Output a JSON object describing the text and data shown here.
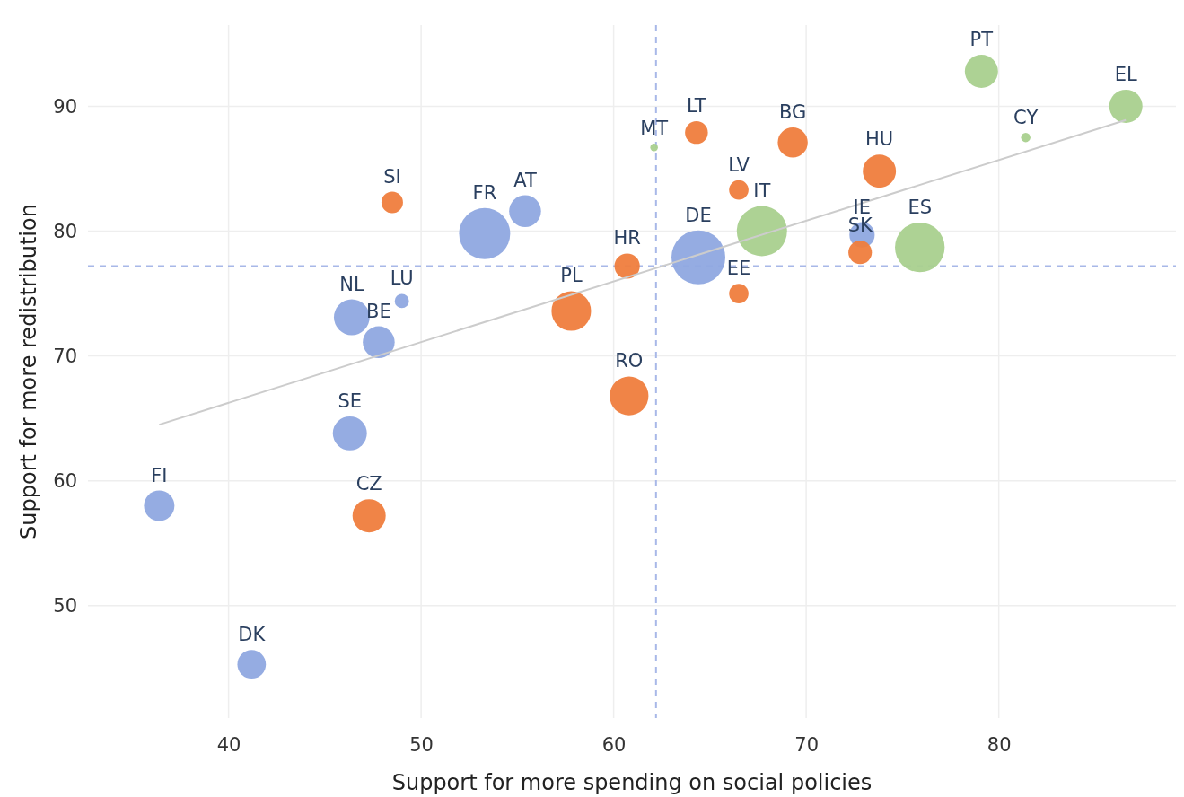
{
  "chart_data": {
    "type": "bubble",
    "xlabel": "Support for more spending on social policies",
    "ylabel": "Support for more redistribution",
    "xlim": [
      32.7,
      89.2
    ],
    "ylim": [
      41,
      96.5
    ],
    "xticks": [
      40,
      50,
      60,
      70,
      80
    ],
    "yticks": [
      50,
      60,
      70,
      80,
      90
    ],
    "grid": true,
    "marker": "circle",
    "series": [
      {
        "color": "#8fa8e0",
        "x": [
          53.3,
          55.4,
          46.4,
          47.8,
          49.0,
          64.4,
          72.9,
          46.3,
          36.4,
          41.2
        ],
        "values": [
          79.8,
          81.6,
          73.1,
          71.1,
          74.4,
          77.9,
          79.7,
          63.8,
          58.0,
          45.3
        ],
        "sizes": [
          0.9,
          0.35,
          0.44,
          0.35,
          0.07,
          1,
          0.22,
          0.4,
          0.32,
          0.28
        ]
      },
      {
        "color": "#ef7d3d",
        "x": [
          48.5,
          57.8,
          60.7,
          64.3,
          69.3,
          66.5,
          66.5,
          73.8,
          72.8,
          60.8,
          47.3
        ],
        "values": [
          82.3,
          73.6,
          77.2,
          87.9,
          87.1,
          83.3,
          75.0,
          84.8,
          78.3,
          66.8,
          57.2
        ],
        "sizes": [
          0.16,
          0.54,
          0.22,
          0.18,
          0.31,
          0.13,
          0.13,
          0.38,
          0.19,
          0.52,
          0.38
        ]
      },
      {
        "color": "#a9d08e",
        "x": [
          62.1,
          67.7,
          75.9,
          79.1,
          81.4,
          86.6
        ],
        "values": [
          86.7,
          80.0,
          78.7,
          92.8,
          87.5,
          90.0
        ],
        "sizes": [
          0.02,
          0.87,
          0.85,
          0.38,
          0.03,
          0.38
        ]
      },
      {
        "type": "line",
        "marker": "none",
        "color": "#cccccc",
        "x": [
          36.4,
          86.6
        ],
        "values": [
          64.5,
          88.9
        ]
      }
    ],
    "ref_lines": [
      {
        "axis": "x",
        "value": 62.2,
        "color": "#a8b8e8",
        "line_style": "dashed"
      },
      {
        "axis": "y",
        "value": 77.2,
        "color": "#a8b8e8",
        "line_style": "dashed"
      }
    ],
    "annotations": [
      {
        "text": "FR",
        "x": 53.3,
        "y": 79.8
      },
      {
        "text": "AT",
        "x": 55.4,
        "y": 81.6
      },
      {
        "text": "NL",
        "x": 46.4,
        "y": 73.1
      },
      {
        "text": "BE",
        "x": 47.8,
        "y": 71.1
      },
      {
        "text": "LU",
        "x": 49.0,
        "y": 74.4
      },
      {
        "text": "DE",
        "x": 64.4,
        "y": 77.9
      },
      {
        "text": "IE",
        "x": 72.9,
        "y": 79.7
      },
      {
        "text": "SE",
        "x": 46.3,
        "y": 63.8
      },
      {
        "text": "FI",
        "x": 36.4,
        "y": 58.0
      },
      {
        "text": "DK",
        "x": 41.2,
        "y": 45.3
      },
      {
        "text": "SI",
        "x": 48.5,
        "y": 82.3
      },
      {
        "text": "PL",
        "x": 57.8,
        "y": 73.6
      },
      {
        "text": "HR",
        "x": 60.7,
        "y": 77.2
      },
      {
        "text": "LT",
        "x": 64.3,
        "y": 87.9
      },
      {
        "text": "BG",
        "x": 69.3,
        "y": 87.1
      },
      {
        "text": "LV",
        "x": 66.5,
        "y": 83.3
      },
      {
        "text": "EE",
        "x": 66.5,
        "y": 75.0
      },
      {
        "text": "HU",
        "x": 73.8,
        "y": 84.8
      },
      {
        "text": "SK",
        "x": 72.8,
        "y": 78.3
      },
      {
        "text": "RO",
        "x": 60.8,
        "y": 66.8
      },
      {
        "text": "CZ",
        "x": 47.3,
        "y": 57.2
      },
      {
        "text": "MT",
        "x": 62.1,
        "y": 86.7
      },
      {
        "text": "IT",
        "x": 67.7,
        "y": 80.0
      },
      {
        "text": "ES",
        "x": 75.9,
        "y": 78.7
      },
      {
        "text": "PT",
        "x": 79.1,
        "y": 92.8
      },
      {
        "text": "CY",
        "x": 81.4,
        "y": 87.5
      },
      {
        "text": "EL",
        "x": 86.6,
        "y": 90.0
      }
    ]
  }
}
